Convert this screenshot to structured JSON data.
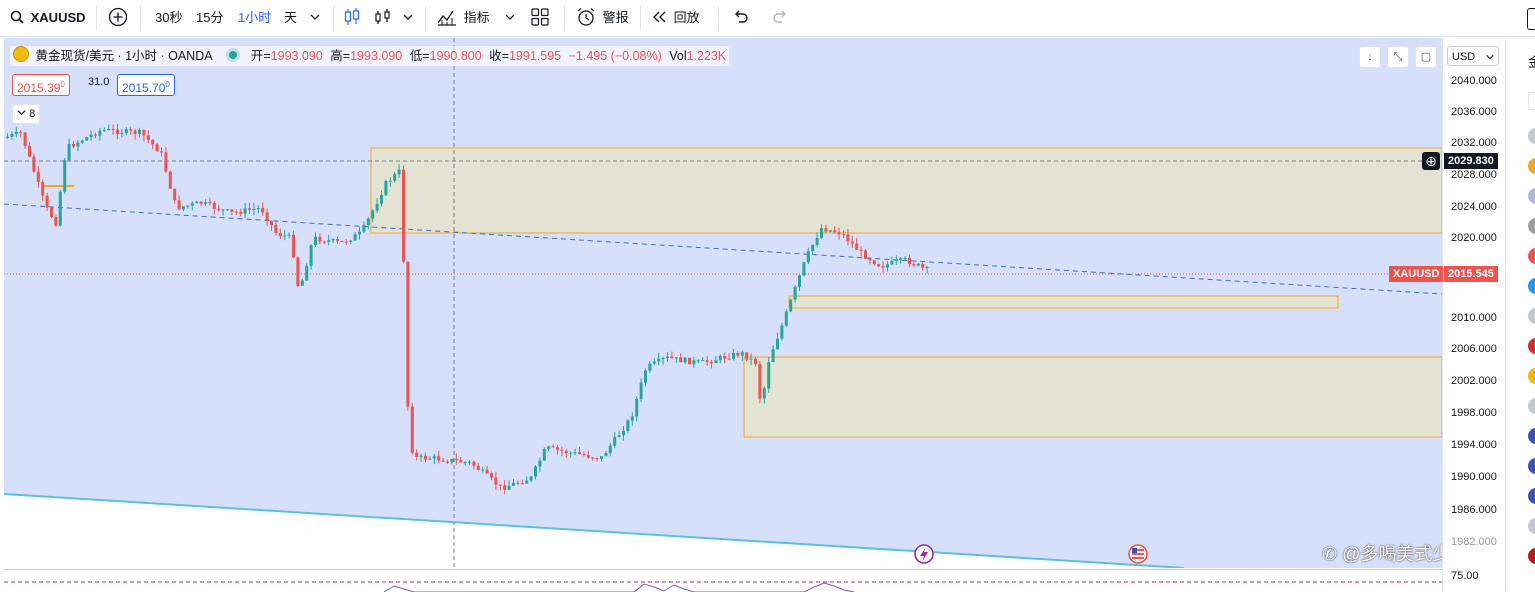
{
  "toolbar": {
    "symbol": "XAUUSD",
    "intervals": [
      "30秒",
      "15分",
      "1小时",
      "天"
    ],
    "active_interval": "1小时",
    "indicators_label": "指标",
    "alert_label": "警报",
    "replay_label": "回放"
  },
  "legend": {
    "title": "黄金现货/美元 · 1小时 · OANDA",
    "open_label": "开=",
    "open": "1993.090",
    "high_label": "高=",
    "high": "1993.090",
    "low_label": "低=",
    "low": "1990.800",
    "close_label": "收=",
    "close": "1991.595",
    "change": "−1.495 (−0.08%)",
    "vol_label": "Vol",
    "vol": "1.223K",
    "sell_price": "2015.39",
    "sell_super": "0",
    "spread": "31.0",
    "buy_price": "2015.70",
    "buy_super": "0",
    "collapse_count": "8"
  },
  "price_axis": {
    "currency": "USD",
    "ticks": [
      "2040.000",
      "2036.000",
      "2032.000",
      "2028.000",
      "2024.000",
      "2020.000",
      "2010.000",
      "2006.000",
      "2002.000",
      "1998.000",
      "1994.000",
      "1990.000",
      "1986.000",
      "1982.000"
    ],
    "crosshair_price": "2029.830",
    "last_symbol": "XAUUSD",
    "last_price": "2015.545",
    "indicator_tick": "75.00"
  },
  "watermark": "@多喝美式少熬夜",
  "colors": {
    "up": "#26a69a",
    "down": "#ef5350",
    "accent": "#2962ff",
    "chart_bg": "#d6e0fb",
    "zone_fill": "#e2e3d3",
    "zone_border": "#f5a623",
    "channel_line": "#5bc0de"
  }
}
